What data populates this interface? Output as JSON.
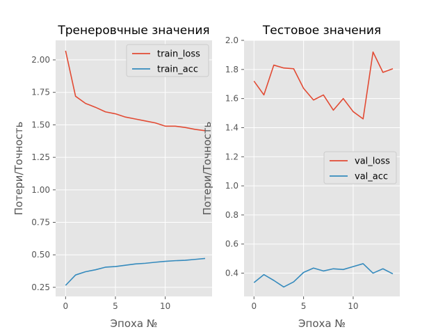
{
  "chart_data": [
    {
      "type": "line",
      "title": "Тренеровчные значения",
      "xlabel": "Эпоха №",
      "ylabel": "Потери/Точность",
      "xlim": [
        -1,
        14.7
      ],
      "ylim": [
        0.18,
        2.15
      ],
      "xticks": [
        0,
        5,
        10
      ],
      "xtick_labels": [
        "0",
        "5",
        "10"
      ],
      "yticks": [
        0.25,
        0.5,
        0.75,
        1.0,
        1.25,
        1.5,
        1.75,
        2.0
      ],
      "ytick_labels": [
        "0.25",
        "0.50",
        "0.75",
        "1.00",
        "1.25",
        "1.50",
        "1.75",
        "2.00"
      ],
      "legend": "top-right",
      "grid": true,
      "x": [
        0,
        1,
        2,
        3,
        4,
        5,
        6,
        7,
        8,
        9,
        10,
        11,
        12,
        13,
        14
      ],
      "series": [
        {
          "name": "train_loss",
          "color": "#E24A33",
          "values": [
            2.07,
            1.72,
            1.665,
            1.635,
            1.6,
            1.585,
            1.56,
            1.545,
            1.53,
            1.515,
            1.49,
            1.49,
            1.48,
            1.465,
            1.455
          ]
        },
        {
          "name": "train_acc",
          "color": "#348ABD",
          "values": [
            0.265,
            0.345,
            0.37,
            0.385,
            0.405,
            0.41,
            0.42,
            0.43,
            0.435,
            0.443,
            0.45,
            0.455,
            0.458,
            0.465,
            0.472
          ]
        }
      ]
    },
    {
      "type": "line",
      "title": "Тестовое значения",
      "xlabel": "Эпоха №",
      "ylabel": "Потери/Точность",
      "xlim": [
        -1,
        14.7
      ],
      "ylim": [
        0.24,
        2.0
      ],
      "xticks": [
        0,
        5,
        10
      ],
      "xtick_labels": [
        "0",
        "5",
        "10"
      ],
      "yticks": [
        0.4,
        0.6,
        0.8,
        1.0,
        1.2,
        1.4,
        1.6,
        1.8,
        2.0
      ],
      "ytick_labels": [
        "0.4",
        "0.6",
        "0.8",
        "1.0",
        "1.2",
        "1.4",
        "1.6",
        "1.8",
        "2.0"
      ],
      "legend": "center-right",
      "grid": true,
      "x": [
        0,
        1,
        2,
        3,
        4,
        5,
        6,
        7,
        8,
        9,
        10,
        11,
        12,
        13,
        14
      ],
      "series": [
        {
          "name": "val_loss",
          "color": "#E24A33",
          "values": [
            1.72,
            1.625,
            1.83,
            1.81,
            1.805,
            1.67,
            1.59,
            1.625,
            1.52,
            1.6,
            1.51,
            1.46,
            1.92,
            1.78,
            1.805
          ]
        },
        {
          "name": "val_acc",
          "color": "#348ABD",
          "values": [
            0.335,
            0.39,
            0.35,
            0.305,
            0.34,
            0.405,
            0.435,
            0.415,
            0.43,
            0.425,
            0.445,
            0.465,
            0.4,
            0.43,
            0.395
          ]
        }
      ]
    }
  ]
}
